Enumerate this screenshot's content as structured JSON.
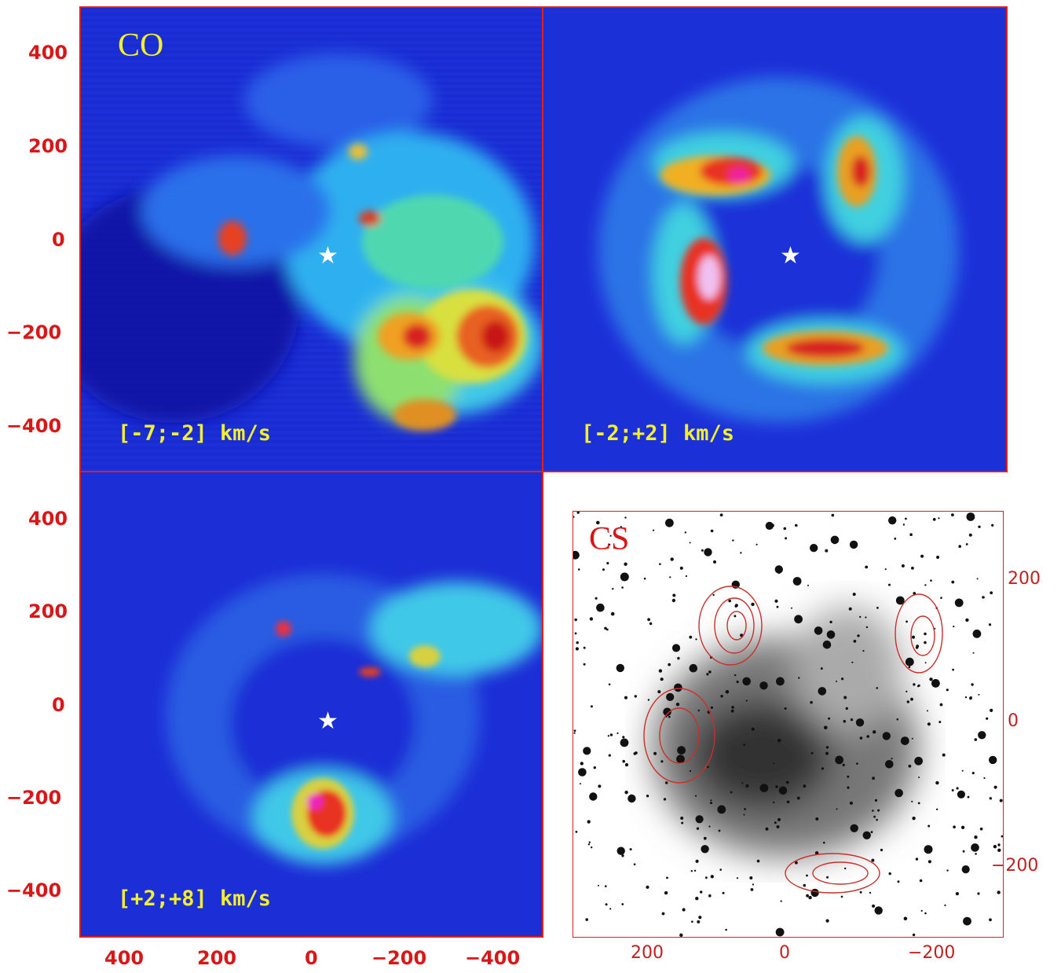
{
  "panels": {
    "top_left": {
      "title": "CO",
      "velocity_label": "[-7;-2] km/s",
      "title_color": "#f2ee30"
    },
    "top_right": {
      "velocity_label": "[-2;+2] km/s"
    },
    "bottom_left": {
      "velocity_label": "[+2;+8] km/s"
    },
    "bottom_right": {
      "title": "CS",
      "title_color": "#d81818"
    }
  },
  "left_axis_ticks_top": [
    "400",
    "200",
    "0",
    "−200",
    "−400"
  ],
  "left_axis_ticks_bottom": [
    "400",
    "200",
    "0",
    "−200",
    "−400"
  ],
  "bottom_axis_ticks": [
    "400",
    "200",
    "0",
    "−200",
    "−400"
  ],
  "cs_axis_ticks_bottom": [
    "200",
    "0",
    "−200"
  ],
  "cs_axis_ticks_right": [
    "200",
    "0",
    "−200"
  ],
  "colors": {
    "axis": "#d81818",
    "map_background": "#1a2bd6",
    "contour_cs": "#c8302a"
  },
  "marker_icon": "star-icon"
}
